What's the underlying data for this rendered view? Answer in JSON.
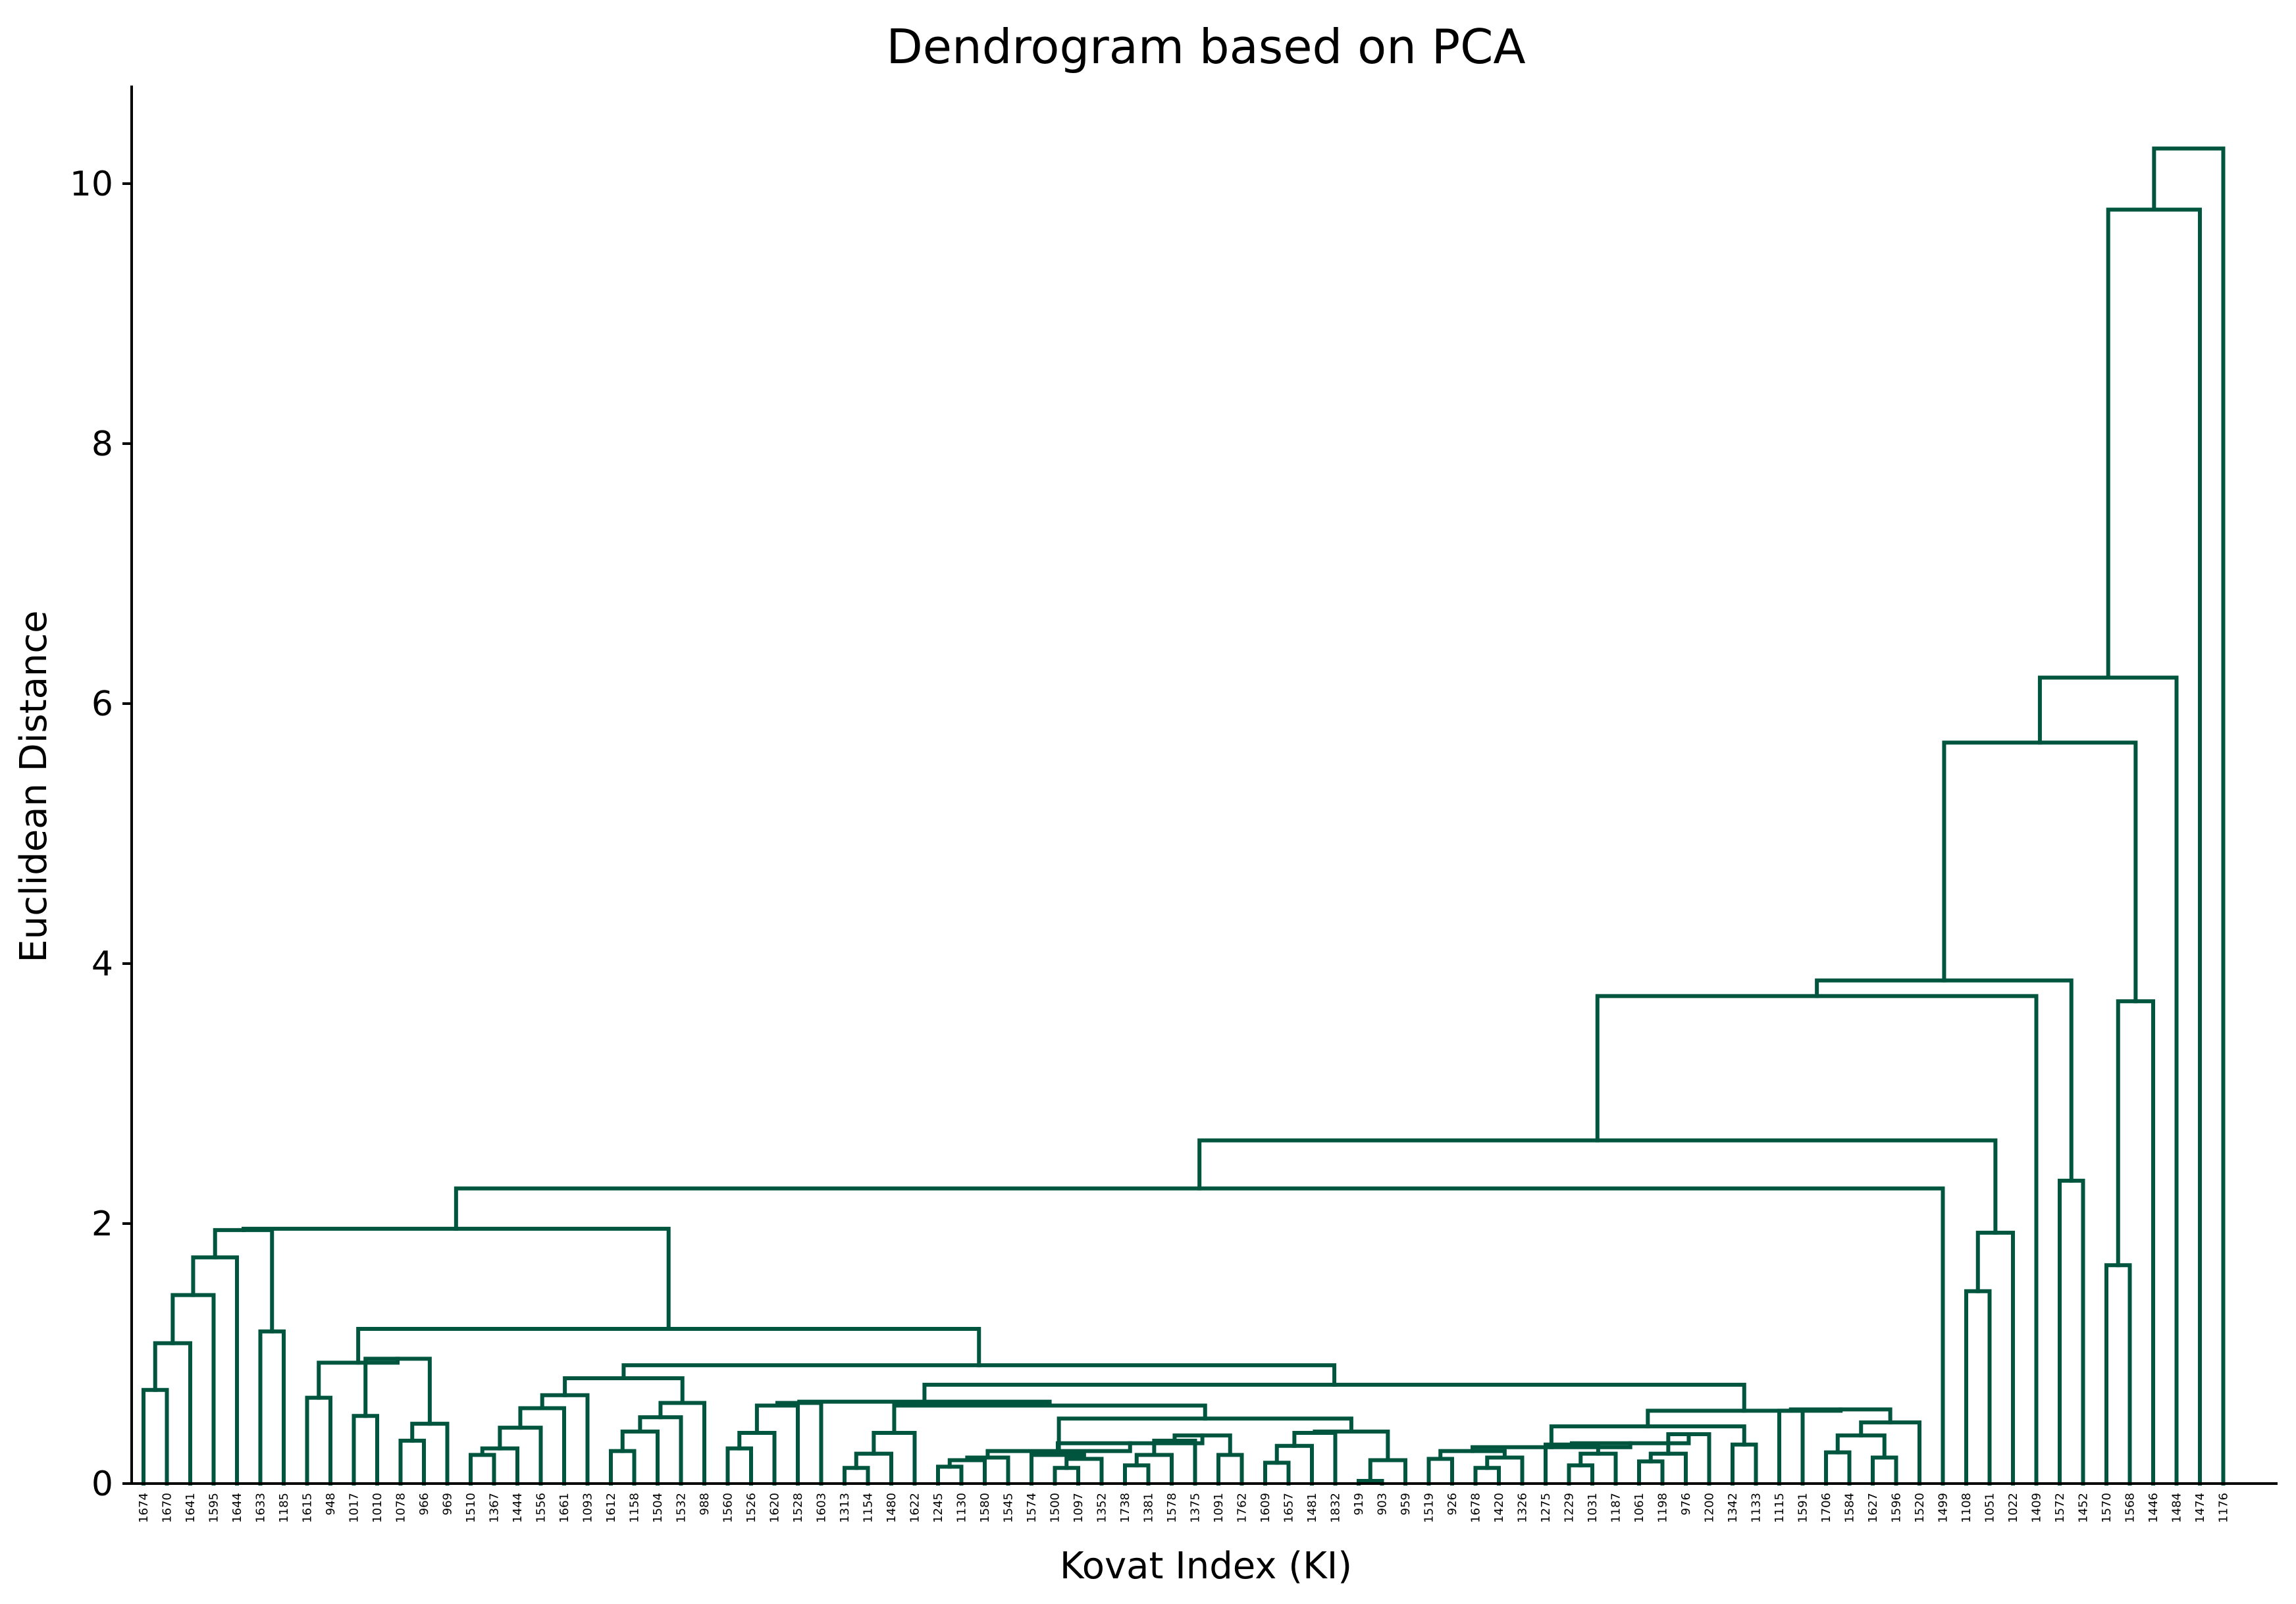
{
  "chart_data": {
    "type": "dendrogram",
    "title": "Dendrogram based on PCA",
    "xlabel": "Kovat Index (KI)",
    "ylabel": "Euclidean Distance",
    "ylim": [
      0,
      10.75
    ],
    "yticks": [
      "0",
      "2",
      "4",
      "6",
      "8",
      "10"
    ],
    "ytick_values": [
      0,
      2,
      4,
      6,
      8,
      10
    ],
    "grid": false,
    "line_color": "#00553f",
    "leaf_labels": [
      "1674",
      "1670",
      "1641",
      "1595",
      "1644",
      "1633",
      "1185",
      "1615",
      "948",
      "1017",
      "1010",
      "1078",
      "966",
      "969",
      "1510",
      "1367",
      "1444",
      "1556",
      "1661",
      "1093",
      "1612",
      "1158",
      "1504",
      "1532",
      "988",
      "1560",
      "1526",
      "1620",
      "1528",
      "1603",
      "1313",
      "1154",
      "1480",
      "1622",
      "1245",
      "1130",
      "1580",
      "1545",
      "1574",
      "1500",
      "1097",
      "1352",
      "1738",
      "1381",
      "1578",
      "1375",
      "1091",
      "1762",
      "1609",
      "1657",
      "1481",
      "1832",
      "919",
      "903",
      "959",
      "1519",
      "926",
      "1678",
      "1420",
      "1326",
      "1275",
      "1229",
      "1031",
      "1187",
      "1061",
      "1198",
      "976",
      "1200",
      "1342",
      "1133",
      "1115",
      "1591",
      "1706",
      "1584",
      "1627",
      "1596",
      "1520",
      "1499",
      "1108",
      "1051",
      "1022",
      "1409",
      "1572",
      "1452",
      "1570",
      "1568",
      "1446",
      "1484",
      "1474",
      "1176"
    ],
    "merges": [
      {
        "id": 0,
        "left": 1,
        "right": 0,
        "height": 0.72
      },
      {
        "id": 1,
        "left": "m0",
        "right": 2,
        "height": 1.08
      },
      {
        "id": 2,
        "left": "m1",
        "right": 3,
        "height": 1.45
      },
      {
        "id": 3,
        "left": "m2",
        "right": 4,
        "height": 1.74
      },
      {
        "id": 4,
        "left": 5,
        "right": 6,
        "height": 1.17
      },
      {
        "id": 5,
        "left": "m3",
        "right": "m4",
        "height": 1.95
      },
      {
        "id": 6,
        "left": 7,
        "right": 8,
        "height": 0.66
      },
      {
        "id": 7,
        "left": 9,
        "right": 10,
        "height": 0.52
      },
      {
        "id": 8,
        "left": 11,
        "right": 12,
        "height": 0.33
      },
      {
        "id": 9,
        "left": "m8",
        "right": 13,
        "height": 0.46
      },
      {
        "id": 10,
        "left": "m7",
        "right": "m9",
        "height": 0.96
      },
      {
        "id": 11,
        "left": "m6",
        "right": "m10",
        "height": 0.93
      },
      {
        "id": 12,
        "left": 14,
        "right": 15,
        "height": 0.22
      },
      {
        "id": 13,
        "left": "m12",
        "right": 16,
        "height": 0.27
      },
      {
        "id": 14,
        "left": "m13",
        "right": 17,
        "height": 0.43
      },
      {
        "id": 15,
        "left": "m14",
        "right": 18,
        "height": 0.58
      },
      {
        "id": 16,
        "left": "m15",
        "right": 19,
        "height": 0.68
      },
      {
        "id": 17,
        "left": 20,
        "right": 21,
        "height": 0.25
      },
      {
        "id": 18,
        "left": "m17",
        "right": 22,
        "height": 0.4
      },
      {
        "id": 19,
        "left": "m18",
        "right": 23,
        "height": 0.51
      },
      {
        "id": 20,
        "left": "m19",
        "right": 24,
        "height": 0.62
      },
      {
        "id": 21,
        "left": "m16",
        "right": "m20",
        "height": 0.81
      },
      {
        "id": 22,
        "left": 25,
        "right": 26,
        "height": 0.27
      },
      {
        "id": 23,
        "left": "m22",
        "right": 27,
        "height": 0.39
      },
      {
        "id": 24,
        "left": "m23",
        "right": 28,
        "height": 0.6
      },
      {
        "id": 25,
        "left": "m24",
        "right": 29,
        "height": 0.62
      },
      {
        "id": 26,
        "left": 30,
        "right": 31,
        "height": 0.12
      },
      {
        "id": 27,
        "left": "m26",
        "right": 32,
        "height": 0.23
      },
      {
        "id": 28,
        "left": "m27",
        "right": 33,
        "height": 0.39
      },
      {
        "id": 29,
        "left": 34,
        "right": 35,
        "height": 0.13
      },
      {
        "id": 30,
        "left": "m29",
        "right": 36,
        "height": 0.18
      },
      {
        "id": 31,
        "left": "m30",
        "right": 37,
        "height": 0.2
      },
      {
        "id": 32,
        "left": 39,
        "right": 40,
        "height": 0.12
      },
      {
        "id": 33,
        "left": "m32",
        "right": 41,
        "height": 0.19
      },
      {
        "id": 34,
        "left": 38,
        "right": "m33",
        "height": 0.22
      },
      {
        "id": 35,
        "left": 42,
        "right": 43,
        "height": 0.14
      },
      {
        "id": 36,
        "left": "m35",
        "right": 44,
        "height": 0.22
      },
      {
        "id": 37,
        "left": "m36",
        "right": 45,
        "height": 0.33
      },
      {
        "id": 38,
        "left": 46,
        "right": 47,
        "height": 0.22
      },
      {
        "id": 39,
        "left": "m37",
        "right": "m38",
        "height": 0.37
      },
      {
        "id": 40,
        "left": "m34",
        "right": "m39",
        "height": 0.31
      },
      {
        "id": 41,
        "left": "m31",
        "right": "m40",
        "height": 0.25
      },
      {
        "id": 42,
        "left": 48,
        "right": 49,
        "height": 0.16
      },
      {
        "id": 43,
        "left": "m42",
        "right": 50,
        "height": 0.29
      },
      {
        "id": 44,
        "left": "m43",
        "right": 51,
        "height": 0.39
      },
      {
        "id": 45,
        "left": 52,
        "right": 53,
        "height": 0.02
      },
      {
        "id": 46,
        "left": "m45",
        "right": 54,
        "height": 0.18
      },
      {
        "id": 47,
        "left": "m44",
        "right": "m46",
        "height": 0.4
      },
      {
        "id": 48,
        "left": "m41",
        "right": "m47",
        "height": 0.5
      },
      {
        "id": 49,
        "left": "m28",
        "right": "m48",
        "height": 0.6
      },
      {
        "id": 50,
        "left": "m25",
        "right": "m49",
        "height": 0.63
      },
      {
        "id": 51,
        "left": 55,
        "right": 56,
        "height": 0.19
      },
      {
        "id": 52,
        "left": 57,
        "right": 58,
        "height": 0.12
      },
      {
        "id": 53,
        "left": "m52",
        "right": 59,
        "height": 0.2
      },
      {
        "id": 54,
        "left": "m51",
        "right": "m53",
        "height": 0.25
      },
      {
        "id": 55,
        "left": 61,
        "right": 62,
        "height": 0.14
      },
      {
        "id": 56,
        "left": "m55",
        "right": 63,
        "height": 0.23
      },
      {
        "id": 57,
        "left": 60,
        "right": "m56",
        "height": 0.3
      },
      {
        "id": 58,
        "left": 64,
        "right": 65,
        "height": 0.17
      },
      {
        "id": 59,
        "left": "m58",
        "right": 66,
        "height": 0.23
      },
      {
        "id": 60,
        "left": "m59",
        "right": 67,
        "height": 0.38
      },
      {
        "id": 61,
        "left": "m57",
        "right": "m60",
        "height": 0.31
      },
      {
        "id": 62,
        "left": "m54",
        "right": "m61",
        "height": 0.28
      },
      {
        "id": 63,
        "left": 68,
        "right": 69,
        "height": 0.3
      },
      {
        "id": 64,
        "left": "m62",
        "right": "m63",
        "height": 0.44
      },
      {
        "id": 65,
        "left": 72,
        "right": 73,
        "height": 0.24
      },
      {
        "id": 66,
        "left": 74,
        "right": 75,
        "height": 0.2
      },
      {
        "id": 67,
        "left": "m65",
        "right": "m66",
        "height": 0.37
      },
      {
        "id": 68,
        "left": "m67",
        "right": 76,
        "height": 0.47
      },
      {
        "id": 69,
        "left": 70,
        "right": 71,
        "height": 0.56
      },
      {
        "id": 70,
        "left": "m69",
        "right": "m68",
        "height": 0.57
      },
      {
        "id": 71,
        "left": "m64",
        "right": "m70",
        "height": 0.56
      },
      {
        "id": 72,
        "left": "m50",
        "right": "m71",
        "height": 0.76
      },
      {
        "id": 73,
        "left": "m21",
        "right": "m72",
        "height": 0.91
      },
      {
        "id": 74,
        "left": "m11",
        "right": "m73",
        "height": 1.19
      },
      {
        "id": 75,
        "left": "m5",
        "right": "m74",
        "height": 1.96
      },
      {
        "id": 76,
        "left": "m75",
        "right": 77,
        "height": 2.27
      },
      {
        "id": 77,
        "left": 78,
        "right": 79,
        "height": 1.48
      },
      {
        "id": 78,
        "left": "m77",
        "right": 80,
        "height": 1.93
      },
      {
        "id": 79,
        "left": "m76",
        "right": "m78",
        "height": 2.64
      },
      {
        "id": 80,
        "left": "m79",
        "right": 81,
        "height": 3.75
      },
      {
        "id": 81,
        "left": 82,
        "right": 83,
        "height": 2.33
      },
      {
        "id": 82,
        "left": "m80",
        "right": "m81",
        "height": 3.87
      },
      {
        "id": 83,
        "left": 84,
        "right": 85,
        "height": 1.68
      },
      {
        "id": 84,
        "left": "m83",
        "right": 86,
        "height": 3.71
      },
      {
        "id": 85,
        "left": "m82",
        "right": "m84",
        "height": 5.7
      },
      {
        "id": 86,
        "left": "m85",
        "right": 87,
        "height": 6.2
      },
      {
        "id": 87,
        "left": "m86",
        "right": 88,
        "height": 9.8
      },
      {
        "id": 88,
        "left": "m87",
        "right": 89,
        "height": 10.27
      }
    ]
  }
}
